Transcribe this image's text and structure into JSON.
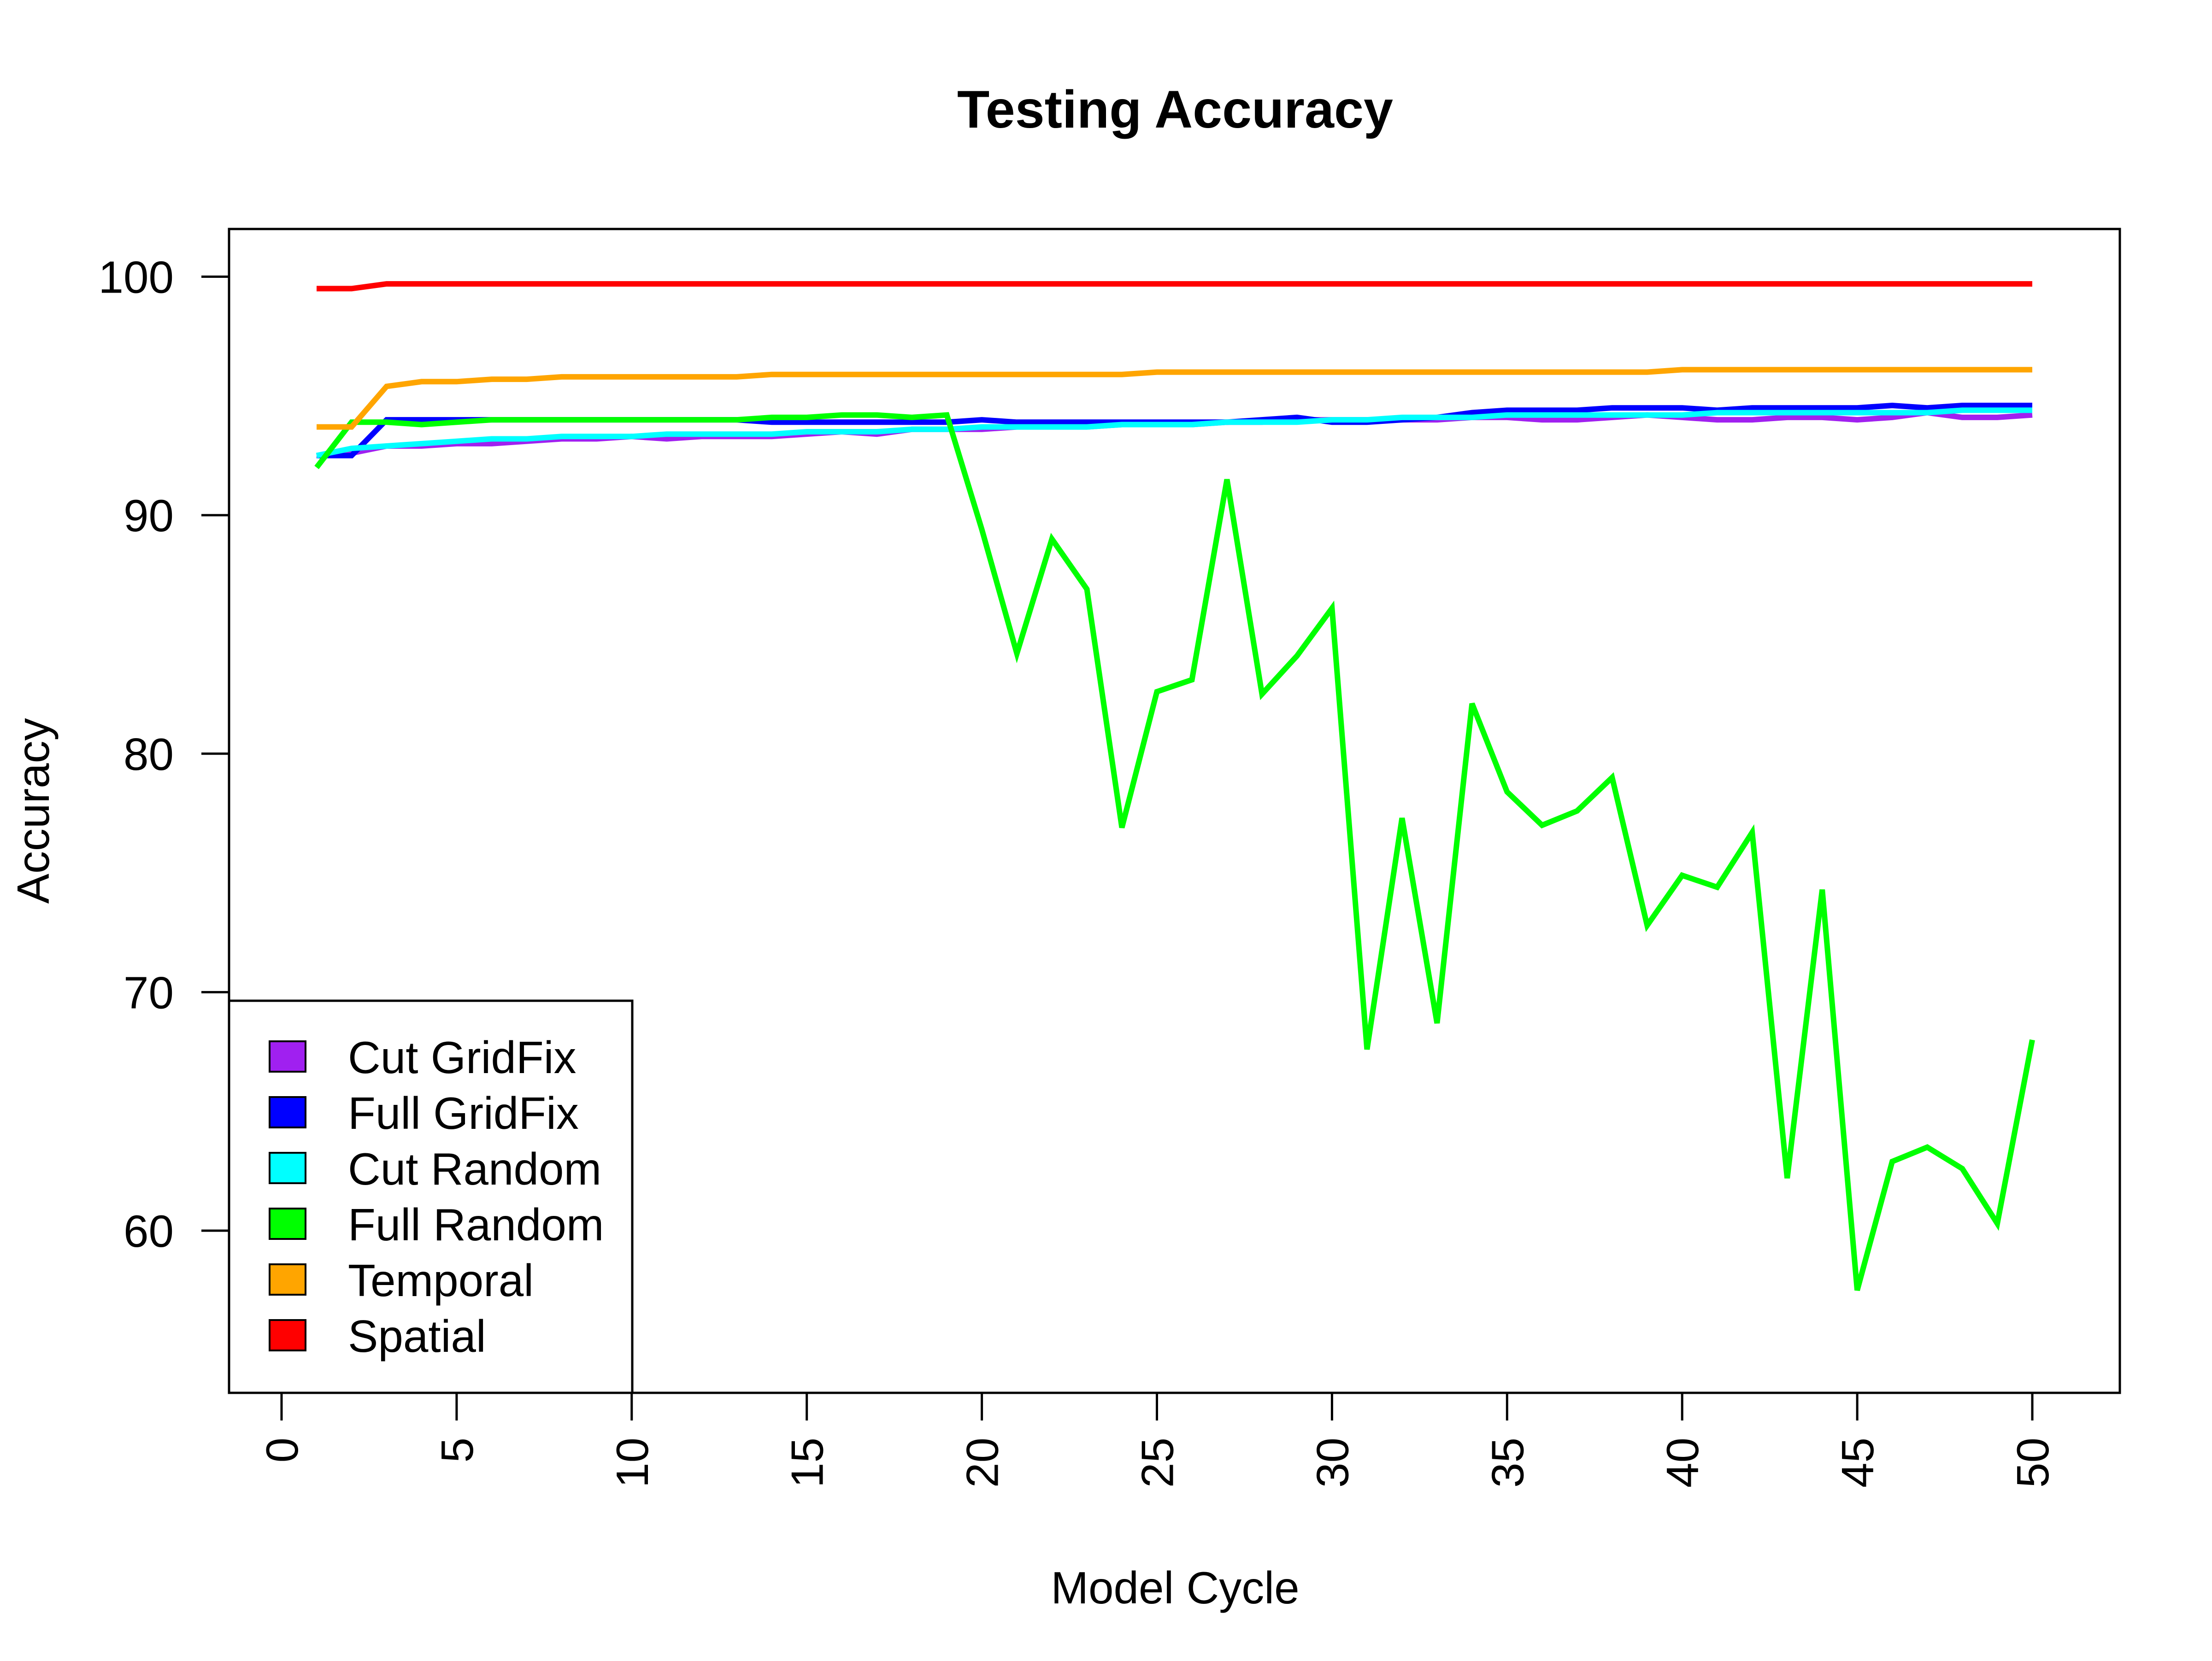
{
  "chart_data": {
    "type": "line",
    "title": "Testing Accuracy",
    "xlabel": "Model Cycle",
    "ylabel": "Accuracy",
    "xlim": [
      -1.5,
      52.5
    ],
    "ylim": [
      53.2,
      102.0
    ],
    "x_ticks": [
      0,
      5,
      10,
      15,
      20,
      25,
      30,
      35,
      40,
      45,
      50
    ],
    "y_ticks": [
      60,
      70,
      80,
      90,
      100
    ],
    "grid": false,
    "legend_position": "bottom-left",
    "x": [
      1,
      2,
      3,
      4,
      5,
      6,
      7,
      8,
      9,
      10,
      11,
      12,
      13,
      14,
      15,
      16,
      17,
      18,
      19,
      20,
      21,
      22,
      23,
      24,
      25,
      26,
      27,
      28,
      29,
      30,
      31,
      32,
      33,
      34,
      35,
      36,
      37,
      38,
      39,
      40,
      41,
      42,
      43,
      44,
      45,
      46,
      47,
      48,
      49,
      50
    ],
    "series": [
      {
        "name": "Cut GridFix",
        "color": "#a020f0",
        "values": [
          92.5,
          92.6,
          92.9,
          92.9,
          93.0,
          93.0,
          93.1,
          93.2,
          93.2,
          93.3,
          93.2,
          93.3,
          93.3,
          93.3,
          93.4,
          93.5,
          93.4,
          93.6,
          93.6,
          93.6,
          93.7,
          93.7,
          93.7,
          93.8,
          93.8,
          93.8,
          93.9,
          93.9,
          94.0,
          94.0,
          94.0,
          94.0,
          94.0,
          94.1,
          94.1,
          94.0,
          94.0,
          94.1,
          94.2,
          94.1,
          94.0,
          94.0,
          94.1,
          94.1,
          94.0,
          94.1,
          94.3,
          94.1,
          94.1,
          94.2
        ]
      },
      {
        "name": "Full GridFix",
        "color": "#0000ff",
        "values": [
          92.5,
          92.5,
          94.0,
          94.0,
          94.0,
          94.0,
          94.0,
          94.0,
          94.0,
          94.0,
          94.0,
          94.0,
          94.0,
          93.9,
          93.9,
          93.9,
          93.9,
          93.9,
          93.9,
          94.0,
          93.9,
          93.9,
          93.9,
          93.9,
          93.9,
          93.9,
          93.9,
          94.0,
          94.1,
          93.9,
          93.9,
          94.0,
          94.1,
          94.3,
          94.4,
          94.4,
          94.4,
          94.5,
          94.5,
          94.5,
          94.4,
          94.5,
          94.5,
          94.5,
          94.5,
          94.6,
          94.5,
          94.6,
          94.6,
          94.6
        ]
      },
      {
        "name": "Cut Random",
        "color": "#00ffff",
        "values": [
          92.5,
          92.8,
          92.9,
          93.0,
          93.1,
          93.2,
          93.2,
          93.3,
          93.3,
          93.3,
          93.4,
          93.4,
          93.4,
          93.4,
          93.5,
          93.5,
          93.5,
          93.6,
          93.6,
          93.7,
          93.7,
          93.7,
          93.7,
          93.8,
          93.8,
          93.8,
          93.9,
          93.9,
          93.9,
          94.0,
          94.0,
          94.1,
          94.1,
          94.1,
          94.2,
          94.2,
          94.2,
          94.2,
          94.2,
          94.2,
          94.3,
          94.3,
          94.3,
          94.3,
          94.3,
          94.3,
          94.3,
          94.4,
          94.4,
          94.4
        ]
      },
      {
        "name": "Full Random",
        "color": "#00ff00",
        "values": [
          92.0,
          93.9,
          93.9,
          93.8,
          93.9,
          94.0,
          94.0,
          94.0,
          94.0,
          94.0,
          94.0,
          94.0,
          94.0,
          94.1,
          94.1,
          94.2,
          94.2,
          94.1,
          94.2,
          89.4,
          84.2,
          89.0,
          86.9,
          76.9,
          82.6,
          83.1,
          91.5,
          82.5,
          84.1,
          86.1,
          67.6,
          77.3,
          68.7,
          82.1,
          78.4,
          77.0,
          77.6,
          79.0,
          72.8,
          74.9,
          74.4,
          76.7,
          62.2,
          74.3,
          57.5,
          62.9,
          63.5,
          62.6,
          60.3,
          68.0
        ]
      },
      {
        "name": "Temporal",
        "color": "#ffa500",
        "values": [
          93.7,
          93.7,
          95.4,
          95.6,
          95.6,
          95.7,
          95.7,
          95.8,
          95.8,
          95.8,
          95.8,
          95.8,
          95.8,
          95.9,
          95.9,
          95.9,
          95.9,
          95.9,
          95.9,
          95.9,
          95.9,
          95.9,
          95.9,
          95.9,
          96.0,
          96.0,
          96.0,
          96.0,
          96.0,
          96.0,
          96.0,
          96.0,
          96.0,
          96.0,
          96.0,
          96.0,
          96.0,
          96.0,
          96.0,
          96.1,
          96.1,
          96.1,
          96.1,
          96.1,
          96.1,
          96.1,
          96.1,
          96.1,
          96.1,
          96.1
        ]
      },
      {
        "name": "Spatial",
        "color": "#ff0000",
        "values": [
          99.5,
          99.5,
          99.7,
          99.7,
          99.7,
          99.7,
          99.7,
          99.7,
          99.7,
          99.7,
          99.7,
          99.7,
          99.7,
          99.7,
          99.7,
          99.7,
          99.7,
          99.7,
          99.7,
          99.7,
          99.7,
          99.7,
          99.7,
          99.7,
          99.7,
          99.7,
          99.7,
          99.7,
          99.7,
          99.7,
          99.7,
          99.7,
          99.7,
          99.7,
          99.7,
          99.7,
          99.7,
          99.7,
          99.7,
          99.7,
          99.7,
          99.7,
          99.7,
          99.7,
          99.7,
          99.7,
          99.7,
          99.7,
          99.7,
          99.7
        ]
      }
    ]
  }
}
